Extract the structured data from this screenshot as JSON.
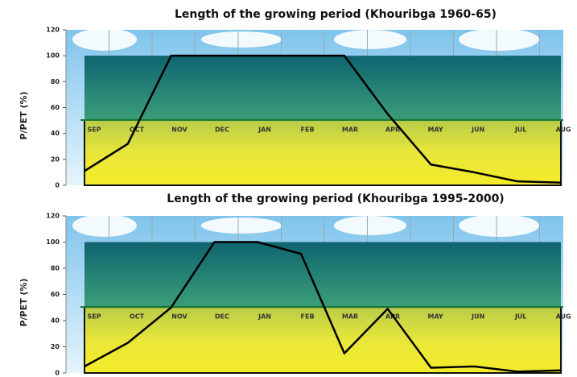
{
  "chart_data": [
    {
      "type": "line",
      "title": "Length of the growing period (Khouribga 1960-65)",
      "y_label": "P/PET (%)",
      "categories": [
        "SEP",
        "OCT",
        "NOV",
        "DEC",
        "JAN",
        "FEB",
        "MAR",
        "APR",
        "MAY",
        "JUN",
        "JUL",
        "AUG"
      ],
      "series": [
        {
          "color": "#000000",
          "values": [
            11,
            32,
            100,
            100,
            100,
            100,
            100,
            55,
            16,
            10,
            3,
            2
          ]
        }
      ],
      "ylim": [
        0,
        120
      ],
      "yticks": [
        0,
        20,
        40,
        60,
        80,
        100,
        120
      ]
    },
    {
      "type": "line",
      "title": "Length of the growing period (Khouribga 1995-2000)",
      "y_label": "P/PET (%)",
      "categories": [
        "SEP",
        "OCT",
        "NOV",
        "DEC",
        "JAN",
        "FEB",
        "MAR",
        "APR",
        "MAY",
        "JUN",
        "JUL",
        "AUG"
      ],
      "series": [
        {
          "color": "#000000",
          "values": [
            5,
            23,
            50,
            100,
            100,
            91,
            15,
            49,
            4,
            5,
            1,
            2
          ]
        }
      ],
      "ylim": [
        0,
        120
      ],
      "yticks": [
        0,
        20,
        40,
        60,
        80,
        100,
        120
      ]
    }
  ]
}
